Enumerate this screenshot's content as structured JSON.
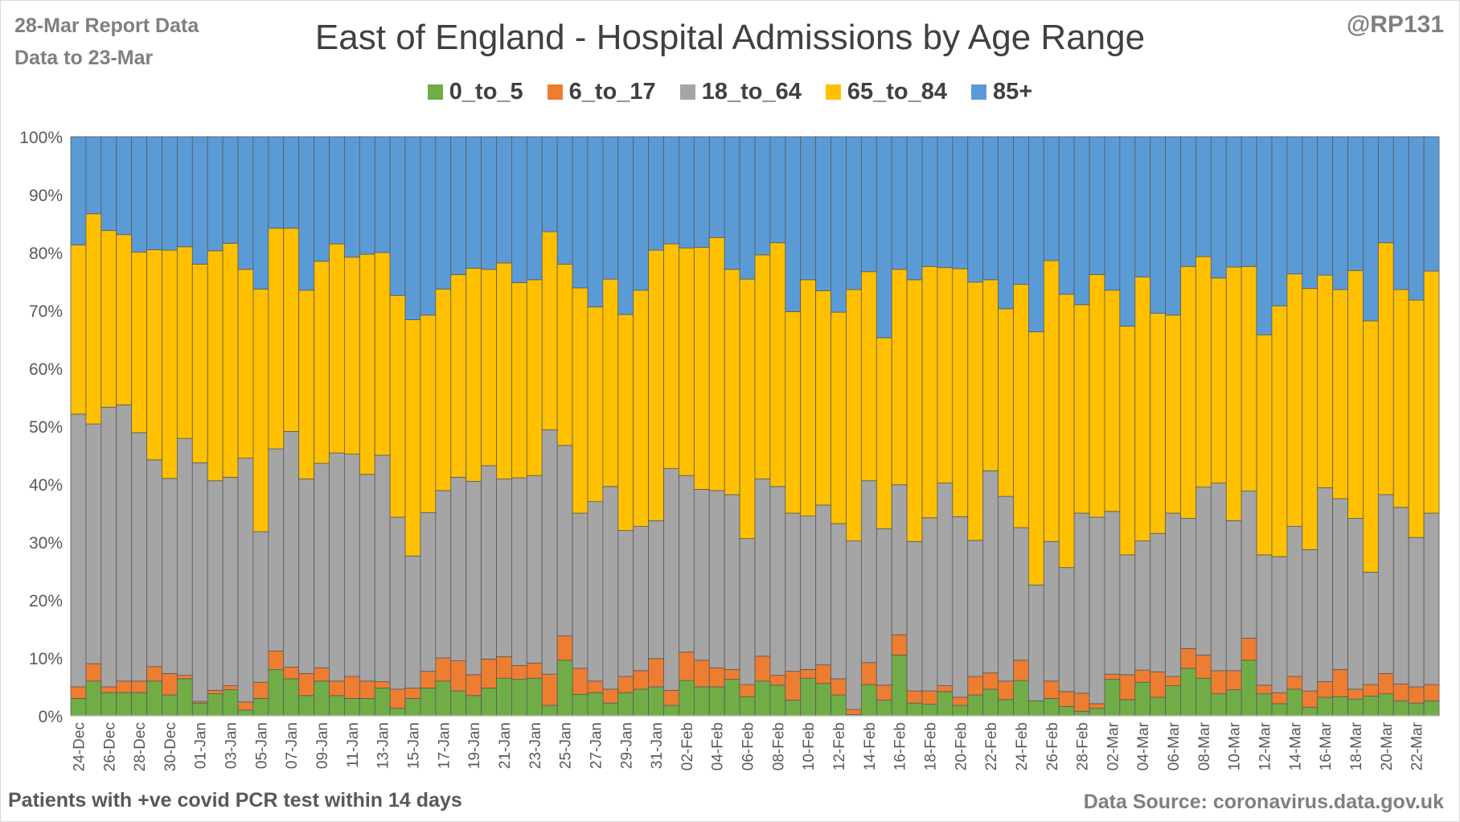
{
  "header": {
    "report_line1": "28-Mar Report Data",
    "report_line2": "Data to 23-Mar",
    "author": "@RP131"
  },
  "footer": {
    "note": "Patients with  +ve covid PCR test within 14 days",
    "source": "Data Source: coronavirus.data.gov.uk"
  },
  "colors": {
    "0_to_5": "#70ad47",
    "6_to_17": "#ed7d31",
    "18_to_64": "#a5a5a5",
    "65_to_84": "#ffc000",
    "85+": "#5b9bd5",
    "grid": "#d9d9d9",
    "axis_text": "#595959"
  },
  "chart_data": {
    "type": "bar",
    "stacked": "100%",
    "title": "East of England - Hospital Admissions by Age Range",
    "xlabel": "",
    "ylabel": "",
    "ylim": [
      0,
      100
    ],
    "yticks": [
      "0%",
      "10%",
      "20%",
      "30%",
      "40%",
      "50%",
      "60%",
      "70%",
      "80%",
      "90%",
      "100%"
    ],
    "legend_position": "top",
    "grid": true,
    "categories": [
      "24-Dec",
      "25-Dec",
      "26-Dec",
      "27-Dec",
      "28-Dec",
      "29-Dec",
      "30-Dec",
      "31-Dec",
      "01-Jan",
      "02-Jan",
      "03-Jan",
      "04-Jan",
      "05-Jan",
      "06-Jan",
      "07-Jan",
      "08-Jan",
      "09-Jan",
      "10-Jan",
      "11-Jan",
      "12-Jan",
      "13-Jan",
      "14-Jan",
      "15-Jan",
      "16-Jan",
      "17-Jan",
      "18-Jan",
      "19-Jan",
      "20-Jan",
      "21-Jan",
      "22-Jan",
      "23-Jan",
      "24-Jan",
      "25-Jan",
      "26-Jan",
      "27-Jan",
      "28-Jan",
      "29-Jan",
      "30-Jan",
      "31-Jan",
      "01-Feb",
      "02-Feb",
      "03-Feb",
      "04-Feb",
      "05-Feb",
      "06-Feb",
      "07-Feb",
      "08-Feb",
      "09-Feb",
      "10-Feb",
      "11-Feb",
      "12-Feb",
      "13-Feb",
      "14-Feb",
      "15-Feb",
      "16-Feb",
      "17-Feb",
      "18-Feb",
      "19-Feb",
      "20-Feb",
      "21-Feb",
      "22-Feb",
      "23-Feb",
      "24-Feb",
      "25-Feb",
      "26-Feb",
      "27-Feb",
      "28-Feb",
      "01-Mar",
      "02-Mar",
      "03-Mar",
      "04-Mar",
      "05-Mar",
      "06-Mar",
      "07-Mar",
      "08-Mar",
      "09-Mar",
      "10-Mar",
      "11-Mar",
      "12-Mar",
      "13-Mar",
      "14-Mar",
      "15-Mar",
      "16-Mar",
      "17-Mar",
      "18-Mar",
      "19-Mar",
      "20-Mar",
      "21-Mar",
      "22-Mar",
      "23-Mar"
    ],
    "tick_labels": [
      "24-Dec",
      "26-Dec",
      "28-Dec",
      "30-Dec",
      "01-Jan",
      "03-Jan",
      "05-Jan",
      "07-Jan",
      "09-Jan",
      "11-Jan",
      "13-Jan",
      "15-Jan",
      "17-Jan",
      "19-Jan",
      "21-Jan",
      "23-Jan",
      "25-Jan",
      "27-Jan",
      "29-Jan",
      "31-Jan",
      "02-Feb",
      "04-Feb",
      "06-Feb",
      "08-Feb",
      "10-Feb",
      "12-Feb",
      "14-Feb",
      "16-Feb",
      "18-Feb",
      "20-Feb",
      "22-Feb",
      "24-Feb",
      "26-Feb",
      "28-Feb",
      "02-Mar",
      "04-Mar",
      "06-Mar",
      "08-Mar",
      "10-Mar",
      "12-Mar",
      "14-Mar",
      "16-Mar",
      "18-Mar",
      "20-Mar",
      "22-Mar"
    ],
    "series": [
      {
        "name": "0_to_5",
        "key": "0_to_5",
        "cumulative_top": [
          3,
          6,
          4,
          4,
          4,
          6,
          3.6,
          6.4,
          2.2,
          3.8,
          4.5,
          1,
          3,
          8,
          6.4,
          3.5,
          6,
          3.5,
          3,
          3,
          4.8,
          1.3,
          3,
          4.8,
          6,
          4.3,
          3.5,
          4.8,
          6.5,
          6.3,
          6.5,
          1.8,
          9.6,
          3.7,
          4,
          2.2,
          4,
          4.6,
          5,
          1.8,
          6.1,
          5,
          5,
          6.3,
          3.3,
          6,
          5.3,
          2.7,
          6.5,
          5.6,
          3.6,
          0.2,
          5.4,
          2.7,
          10.5,
          2.2,
          2,
          4.2,
          1.8,
          3.6,
          4.6,
          2.8,
          6.1,
          2.6,
          3,
          1.6,
          0.8,
          1.3,
          6.3,
          2.8,
          5.8,
          3.2,
          5.2,
          8.2,
          6.5,
          3.8,
          4.5,
          9.6,
          3.8,
          2.1,
          4.6,
          1.5,
          3.2,
          3.3,
          2.9,
          3.4,
          3.8,
          2.6,
          2.2,
          2.6
        ]
      },
      {
        "name": "6_to_17",
        "key": "6_to_17",
        "cumulative_top": [
          5,
          9,
          5,
          6,
          6,
          8.5,
          7.3,
          7,
          2.5,
          4.4,
          5.2,
          2.4,
          5.8,
          11.2,
          8.4,
          7.3,
          8.3,
          6,
          6.8,
          6,
          5.9,
          4.6,
          4.8,
          7.7,
          10,
          9.5,
          7.1,
          9.8,
          10.2,
          8.7,
          9.1,
          7.2,
          13.8,
          8.2,
          6,
          4.6,
          6.8,
          7.8,
          9.9,
          4.4,
          11,
          9.6,
          8.3,
          8,
          5.4,
          10.3,
          7,
          7.7,
          8,
          8.8,
          6.4,
          1.1,
          9.2,
          5.3,
          14,
          4.3,
          4.3,
          5.2,
          3.2,
          6.8,
          7.4,
          6,
          9.6,
          2.6,
          6,
          4.2,
          3.9,
          2.1,
          7.2,
          7.1,
          7.9,
          7.6,
          6.8,
          11.6,
          10.5,
          7.8,
          7.8,
          13.4,
          5.3,
          4,
          6.8,
          4.3,
          5.9,
          8,
          4.6,
          5.4,
          7.3,
          5.5,
          5,
          5.4
        ]
      },
      {
        "name": "18_to_64",
        "key": "18_to_64",
        "cumulative_top": [
          52.1,
          50.4,
          53.3,
          53.7,
          48.9,
          44.2,
          41,
          47.9,
          43.7,
          40.6,
          41.2,
          44.5,
          31.8,
          46.1,
          49.1,
          40.9,
          43.6,
          45.4,
          45.2,
          41.7,
          45,
          34.3,
          27.6,
          35.1,
          38.9,
          41.2,
          40.5,
          43.2,
          40.9,
          41.1,
          41.5,
          49.4,
          46.7,
          35,
          37,
          39.6,
          32,
          32.7,
          33.7,
          42.7,
          41.5,
          39.1,
          38.9,
          38.2,
          30.6,
          40.9,
          39.6,
          35,
          34.5,
          36.4,
          33.2,
          30.2,
          40.6,
          32.3,
          39.9,
          30.1,
          34.2,
          40.2,
          34.4,
          30.3,
          42.3,
          37.9,
          32.5,
          22.6,
          30.1,
          25.6,
          35,
          34.3,
          35.3,
          27.8,
          30.2,
          31.5,
          35,
          34.1,
          39.5,
          40.2,
          33.7,
          38.8,
          27.8,
          27.5,
          32.7,
          28.7,
          39.4,
          37.5,
          34.1,
          24.8,
          38.2,
          36,
          30.8,
          35
        ]
      },
      {
        "name": "65_to_84",
        "key": "65_to_84",
        "cumulative_top": [
          81.3,
          86.7,
          83.8,
          83.1,
          80.1,
          80.5,
          80.4,
          81,
          78,
          80.3,
          81.6,
          77.1,
          73.7,
          84.2,
          84.2,
          73.5,
          78.5,
          81.5,
          79.2,
          79.7,
          80,
          72.6,
          68.4,
          69.2,
          73.7,
          76.2,
          77.3,
          77.1,
          78.2,
          74.8,
          75.3,
          83.6,
          78,
          73.9,
          70.6,
          75.4,
          69.3,
          73.5,
          80.4,
          81.5,
          80.8,
          80.9,
          82.6,
          77.1,
          75.4,
          79.6,
          81.7,
          69.8,
          75.3,
          73.4,
          69.7,
          73.6,
          76.7,
          65.3,
          77.1,
          75.3,
          77.6,
          77.4,
          77.2,
          74.9,
          75.3,
          70.3,
          74.5,
          66.3,
          78.6,
          72.8,
          71,
          76.2,
          73.5,
          67.3,
          75.8,
          69.5,
          69.2,
          77.6,
          79.3,
          75.6,
          77.5,
          77.6,
          65.8,
          70.8,
          76.3,
          73.8,
          76.1,
          73.6,
          76.9,
          68.2,
          81.7,
          73.6,
          71.8,
          76.8
        ]
      },
      {
        "name": "85+",
        "key": "85+",
        "cumulative_top": [
          100,
          100,
          100,
          100,
          100,
          100,
          100,
          100,
          100,
          100,
          100,
          100,
          100,
          100,
          100,
          100,
          100,
          100,
          100,
          100,
          100,
          100,
          100,
          100,
          100,
          100,
          100,
          100,
          100,
          100,
          100,
          100,
          100,
          100,
          100,
          100,
          100,
          100,
          100,
          100,
          100,
          100,
          100,
          100,
          100,
          100,
          100,
          100,
          100,
          100,
          100,
          100,
          100,
          100,
          100,
          100,
          100,
          100,
          100,
          100,
          100,
          100,
          100,
          100,
          100,
          100,
          100,
          100,
          100,
          100,
          100,
          100,
          100,
          100,
          100,
          100,
          100,
          100,
          100,
          100,
          100,
          100,
          100,
          100,
          100,
          100,
          100,
          100,
          100,
          100
        ]
      }
    ]
  }
}
